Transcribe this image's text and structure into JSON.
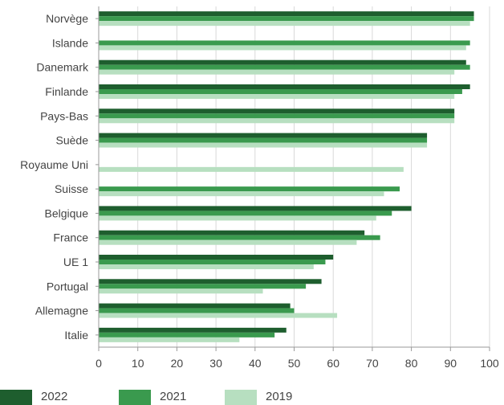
{
  "chart_data": {
    "type": "bar",
    "orientation": "horizontal",
    "categories": [
      "Norvège",
      "Islande",
      "Danemark",
      "Finlande",
      "Pays-Bas",
      "Suède",
      "Royaume Uni",
      "Suisse",
      "Belgique",
      "France",
      "UE 1",
      "Portugal",
      "Allemagne",
      "Italie"
    ],
    "series": [
      {
        "name": "2022",
        "color": "#1e5e2e",
        "values": [
          96,
          null,
          94,
          95,
          91,
          84,
          null,
          null,
          80,
          68,
          60,
          57,
          49,
          48
        ]
      },
      {
        "name": "2021",
        "color": "#3a9a4e",
        "values": [
          96,
          95,
          95,
          93,
          91,
          84,
          null,
          77,
          75,
          72,
          58,
          53,
          50,
          45
        ]
      },
      {
        "name": "2019",
        "color": "#b7dfc0",
        "values": [
          95,
          94,
          91,
          91,
          91,
          84,
          78,
          73,
          71,
          66,
          55,
          42,
          61,
          36
        ]
      }
    ],
    "xlim": [
      0,
      100
    ],
    "xticks": [
      0,
      10,
      20,
      30,
      40,
      50,
      60,
      70,
      80,
      90,
      100
    ],
    "xlabel": "",
    "ylabel": "",
    "title": "",
    "grid": true,
    "legend_position": "bottom-left"
  }
}
